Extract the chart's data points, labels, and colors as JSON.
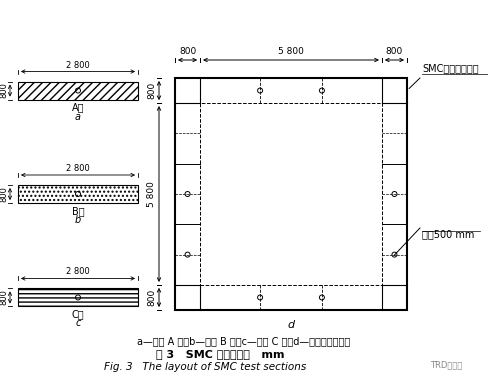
{
  "title_zh": "图 3   SMC 试验段布置   mm",
  "title_en": "Fig. 3   The layout of SMC test sections",
  "caption": "a—试验 A 段；b—试验 B 段；c—试验 C 段；d—闭合环试验段。",
  "label_smc": "SMC水泥土搅拌墙",
  "label_bite": "咬合500 mm",
  "bg_color": "#ffffff",
  "line_color": "#000000",
  "trd_text": "TRD工法网"
}
